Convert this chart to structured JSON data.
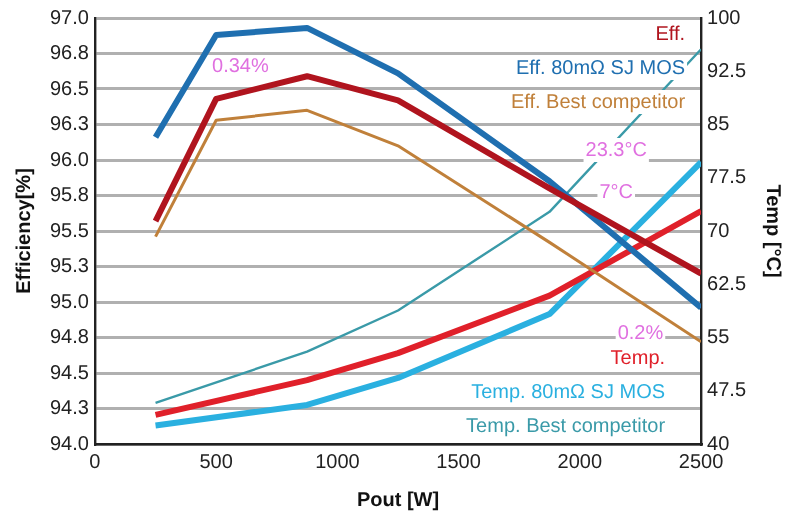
{
  "chart_data": {
    "type": "line",
    "xlabel": "Pout [W]",
    "ylabel": "Efficiency[%]",
    "y2label": "Temp [°C]",
    "xlim": [
      0,
      2500
    ],
    "xticks": [
      0,
      500,
      1000,
      1500,
      2000,
      2500
    ],
    "ylim": [
      94,
      97
    ],
    "yticks": [
      {
        "value": 94,
        "label": "94.0"
      },
      {
        "value": 94.25,
        "label": "94.3"
      },
      {
        "value": 94.5,
        "label": "94.5"
      },
      {
        "value": 94.75,
        "label": "94.8"
      },
      {
        "value": 95,
        "label": "95.0"
      },
      {
        "value": 95.25,
        "label": "95.3"
      },
      {
        "value": 95.5,
        "label": "95.5"
      },
      {
        "value": 95.75,
        "label": "95.8"
      },
      {
        "value": 96,
        "label": "96.0"
      },
      {
        "value": 96.25,
        "label": "96.3"
      },
      {
        "value": 96.5,
        "label": "96.5"
      },
      {
        "value": 96.75,
        "label": "96.8"
      },
      {
        "value": 97,
        "label": "97.0"
      }
    ],
    "y2lim": [
      40,
      100
    ],
    "y2ticks": [
      40,
      47.5,
      55,
      62.5,
      70,
      77.5,
      85,
      92.5,
      100
    ],
    "grid": "y",
    "legend": "right",
    "marker": "none",
    "line_style": "solid",
    "series": [
      {
        "name": "Eff.",
        "color": "#b0141e",
        "x": [
          250,
          500,
          875,
          1250,
          1875,
          2500
        ],
        "values": [
          95.57,
          96.43,
          96.59,
          96.42,
          95.8,
          95.2
        ]
      },
      {
        "name": "Eff. 80mΩ SJ MOS",
        "color": "#1f6fb0",
        "x": [
          250,
          500,
          875,
          1250,
          1875,
          2500
        ],
        "values": [
          96.16,
          96.88,
          96.93,
          96.61,
          95.85,
          94.96
        ]
      },
      {
        "name": "Eff. Best competitor",
        "color": "#c0803a",
        "x": [
          250,
          500,
          875,
          1250,
          1875,
          2500
        ],
        "values": [
          95.46,
          96.28,
          96.35,
          96.1,
          95.42,
          94.72
        ]
      },
      {
        "name": "Temp.",
        "color": "#e0202a",
        "axis": "y2",
        "x": [
          250,
          875,
          1250,
          1875,
          2500
        ],
        "values": [
          44.1,
          49,
          52.8,
          60.9,
          72.8
        ]
      },
      {
        "name": "Temp. 80mΩ SJ MOS",
        "color": "#2ab0e0",
        "axis": "y2",
        "x": [
          250,
          875,
          1250,
          1875,
          2500
        ],
        "values": [
          42.6,
          45.5,
          49.3,
          58.3,
          79.7
        ]
      },
      {
        "name": "Temp. Best competitor",
        "color": "#3a9aa8",
        "axis": "y2",
        "x": [
          250,
          875,
          1250,
          1875,
          2500
        ],
        "values": [
          45.8,
          53,
          58.8,
          72.7,
          95.6
        ]
      }
    ],
    "annotations": [
      "0.34%",
      "23.3°C",
      "7°C",
      "0.2%"
    ]
  }
}
